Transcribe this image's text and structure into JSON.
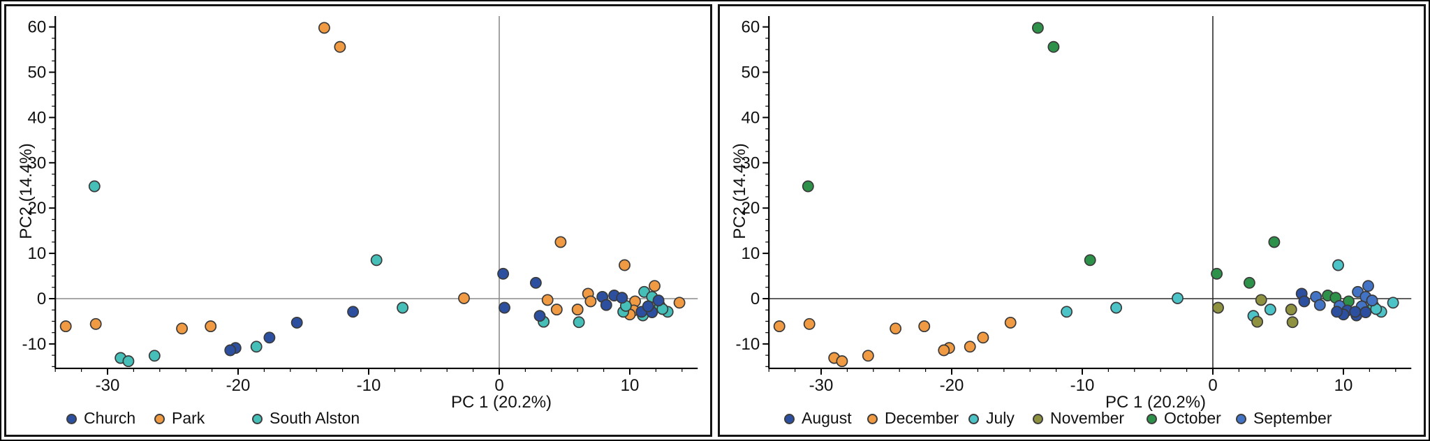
{
  "figure": {
    "background": "#ffffff",
    "border_color": "#000000",
    "marker_outline_color": "#3a3a3a"
  },
  "chart_data": [
    {
      "type": "scatter",
      "title": "",
      "xlabel": "PC 1 (20.2%)",
      "ylabel": "PC2 (14.4%)",
      "xlim": [
        -34,
        15.2
      ],
      "ylim": [
        -15.4,
        62.4
      ],
      "x_major_ticks": [
        -30,
        -20,
        -10,
        0,
        10
      ],
      "x_minor_step": 2,
      "y_major_ticks": [
        -10,
        0,
        10,
        20,
        30,
        40,
        50,
        60
      ],
      "y_minor_step": 2.5,
      "grid": false,
      "zero_lines": true,
      "zero_line_color": "#8c8c8c",
      "legend_position": "bottom",
      "color_by": "site",
      "series": [
        {
          "label": "Church",
          "color": "#2c509f",
          "points": [
            [
              -15.5,
              -5.3
            ],
            [
              -17.6,
              -8.6
            ],
            [
              -20.2,
              -10.9
            ],
            [
              -20.6,
              -11.4
            ],
            [
              -11.2,
              -2.9
            ],
            [
              0.3,
              5.5
            ],
            [
              2.8,
              3.5
            ],
            [
              8.8,
              0.7
            ],
            [
              9.4,
              0.2
            ],
            [
              3.1,
              -3.8
            ],
            [
              0.4,
              -2.0
            ],
            [
              10.9,
              -2.9
            ],
            [
              11.7,
              -3.0
            ],
            [
              7.9,
              0.4
            ],
            [
              8.2,
              -1.4
            ],
            [
              11.4,
              -1.7
            ],
            [
              12.2,
              -0.4
            ]
          ]
        },
        {
          "label": "Park",
          "color": "#f09b44",
          "points": [
            [
              -33.2,
              -6.1
            ],
            [
              -30.9,
              -5.6
            ],
            [
              -24.3,
              -6.6
            ],
            [
              -22.1,
              -6.1
            ],
            [
              -13.4,
              59.8
            ],
            [
              -12.2,
              55.6
            ],
            [
              4.7,
              12.5
            ],
            [
              10.4,
              -0.6
            ],
            [
              -2.7,
              0.1
            ],
            [
              4.4,
              -2.4
            ],
            [
              9.6,
              7.4
            ],
            [
              13.8,
              -0.9
            ],
            [
              3.7,
              -0.3
            ],
            [
              6.0,
              -2.4
            ],
            [
              6.8,
              1.1
            ],
            [
              7.0,
              -0.6
            ],
            [
              10.3,
              -2.6
            ],
            [
              10.0,
              -3.5
            ],
            [
              11.9,
              2.8
            ]
          ]
        },
        {
          "label": "South Alston",
          "color": "#45bfb8",
          "points": [
            [
              -18.6,
              -10.6
            ],
            [
              -26.4,
              -12.6
            ],
            [
              -29.0,
              -13.1
            ],
            [
              -28.4,
              -13.8
            ],
            [
              -31.0,
              24.8
            ],
            [
              -9.4,
              8.5
            ],
            [
              -7.4,
              -2.0
            ],
            [
              12.3,
              -1.6
            ],
            [
              12.9,
              -2.9
            ],
            [
              12.5,
              -2.3
            ],
            [
              3.4,
              -5.1
            ],
            [
              6.1,
              -5.2
            ],
            [
              9.5,
              -2.9
            ],
            [
              11.0,
              -3.7
            ],
            [
              9.7,
              -1.6
            ],
            [
              11.1,
              1.5
            ],
            [
              11.7,
              0.4
            ]
          ]
        }
      ]
    },
    {
      "type": "scatter",
      "title": "",
      "xlabel": "PC 1 (20.2%)",
      "ylabel": "PC2 (14.4%)",
      "xlim": [
        -34,
        15.2
      ],
      "ylim": [
        -15.4,
        62.4
      ],
      "x_major_ticks": [
        -30,
        -20,
        -10,
        0,
        10
      ],
      "x_minor_step": 2,
      "y_major_ticks": [
        -10,
        0,
        10,
        20,
        30,
        40,
        50,
        60
      ],
      "y_minor_step": 2.5,
      "grid": false,
      "zero_lines": true,
      "zero_line_color": "#2b2b2b",
      "legend_position": "bottom",
      "color_by": "month",
      "series": [
        {
          "label": "August",
          "color": "#2c509f",
          "points": [
            [
              6.8,
              1.1
            ],
            [
              7.0,
              -0.6
            ],
            [
              10.3,
              -2.6
            ],
            [
              10.0,
              -3.5
            ],
            [
              9.5,
              -2.9
            ],
            [
              11.0,
              -3.7
            ],
            [
              10.9,
              -2.9
            ],
            [
              11.7,
              -3.0
            ]
          ]
        },
        {
          "label": "December",
          "color": "#f09b44",
          "points": [
            [
              -33.2,
              -6.1
            ],
            [
              -30.9,
              -5.6
            ],
            [
              -24.3,
              -6.6
            ],
            [
              -22.1,
              -6.1
            ],
            [
              -15.5,
              -5.3
            ],
            [
              -17.6,
              -8.6
            ],
            [
              -20.2,
              -10.9
            ],
            [
              -20.6,
              -11.4
            ],
            [
              -18.6,
              -10.6
            ],
            [
              -26.4,
              -12.6
            ],
            [
              -29.0,
              -13.1
            ],
            [
              -28.4,
              -13.8
            ]
          ]
        },
        {
          "label": "July",
          "color": "#4cc3c6",
          "points": [
            [
              -11.2,
              -2.9
            ],
            [
              -7.4,
              -2.0
            ],
            [
              -2.7,
              0.1
            ],
            [
              4.4,
              -2.4
            ],
            [
              3.1,
              -3.8
            ],
            [
              9.6,
              7.4
            ],
            [
              12.3,
              -1.6
            ],
            [
              12.9,
              -2.9
            ],
            [
              12.5,
              -2.3
            ],
            [
              13.8,
              -0.9
            ]
          ]
        },
        {
          "label": "November",
          "color": "#8e9140",
          "points": [
            [
              0.4,
              -2.0
            ],
            [
              3.7,
              -0.3
            ],
            [
              3.4,
              -5.1
            ],
            [
              6.0,
              -2.4
            ],
            [
              6.1,
              -5.2
            ]
          ]
        },
        {
          "label": "October",
          "color": "#2e9149",
          "points": [
            [
              -13.4,
              59.8
            ],
            [
              -12.2,
              55.6
            ],
            [
              -31.0,
              24.8
            ],
            [
              -9.4,
              8.5
            ],
            [
              4.7,
              12.5
            ],
            [
              0.3,
              5.5
            ],
            [
              2.8,
              3.5
            ],
            [
              8.8,
              0.7
            ],
            [
              9.4,
              0.2
            ],
            [
              10.4,
              -0.6
            ]
          ]
        },
        {
          "label": "September",
          "color": "#4273c5",
          "points": [
            [
              7.9,
              0.4
            ],
            [
              8.2,
              -1.4
            ],
            [
              9.7,
              -1.6
            ],
            [
              11.1,
              1.5
            ],
            [
              11.7,
              0.4
            ],
            [
              11.4,
              -1.7
            ],
            [
              12.2,
              -0.4
            ],
            [
              11.9,
              2.8
            ]
          ]
        }
      ]
    }
  ]
}
